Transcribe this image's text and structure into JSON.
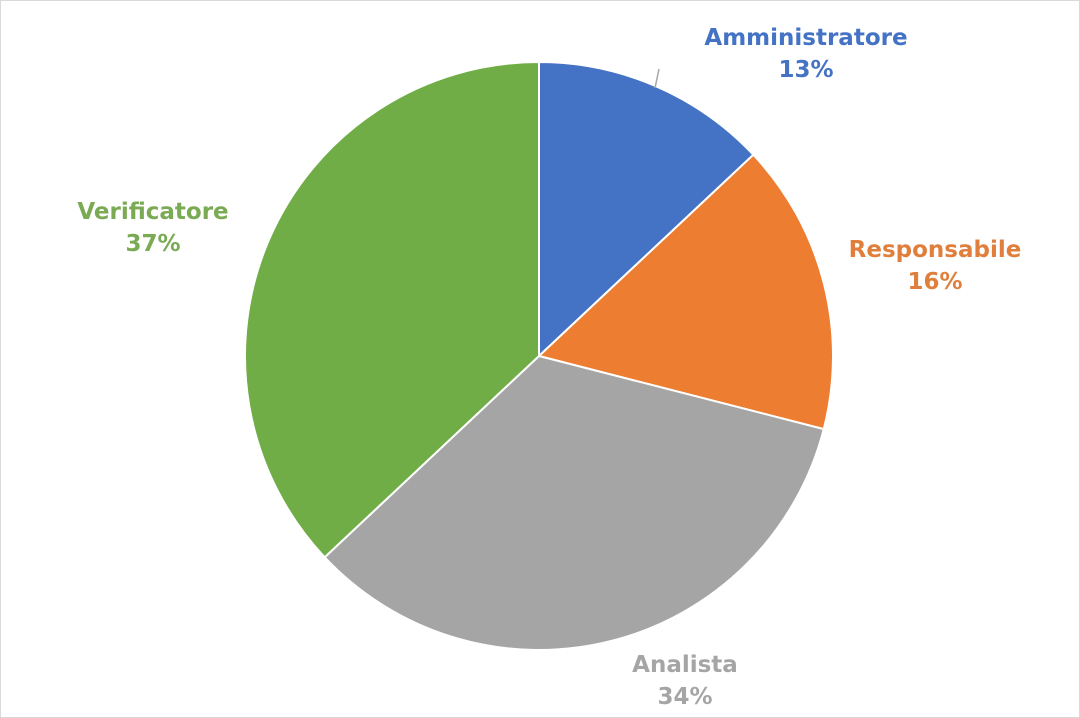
{
  "chart_data": {
    "type": "pie",
    "title": "",
    "start_angle_deg": 0,
    "direction": "clockwise",
    "slices": [
      {
        "label": "Amministratore",
        "value": 13,
        "percent_label": "13%",
        "color": "#4472C4"
      },
      {
        "label": "Responsabile",
        "value": 16,
        "percent_label": "16%",
        "color": "#ED7D31"
      },
      {
        "label": "Analista",
        "value": 34,
        "percent_label": "34%",
        "color": "#A5A5A5"
      },
      {
        "label": "Verificatore",
        "value": 37,
        "percent_label": "37%",
        "color": "#70AD47"
      }
    ],
    "label_colors": {
      "Amministratore": "#4472C4",
      "Responsabile": "#E07F3C",
      "Analista": "#A5A5A5",
      "Verificatore": "#7AAA53"
    },
    "legend": "none"
  }
}
